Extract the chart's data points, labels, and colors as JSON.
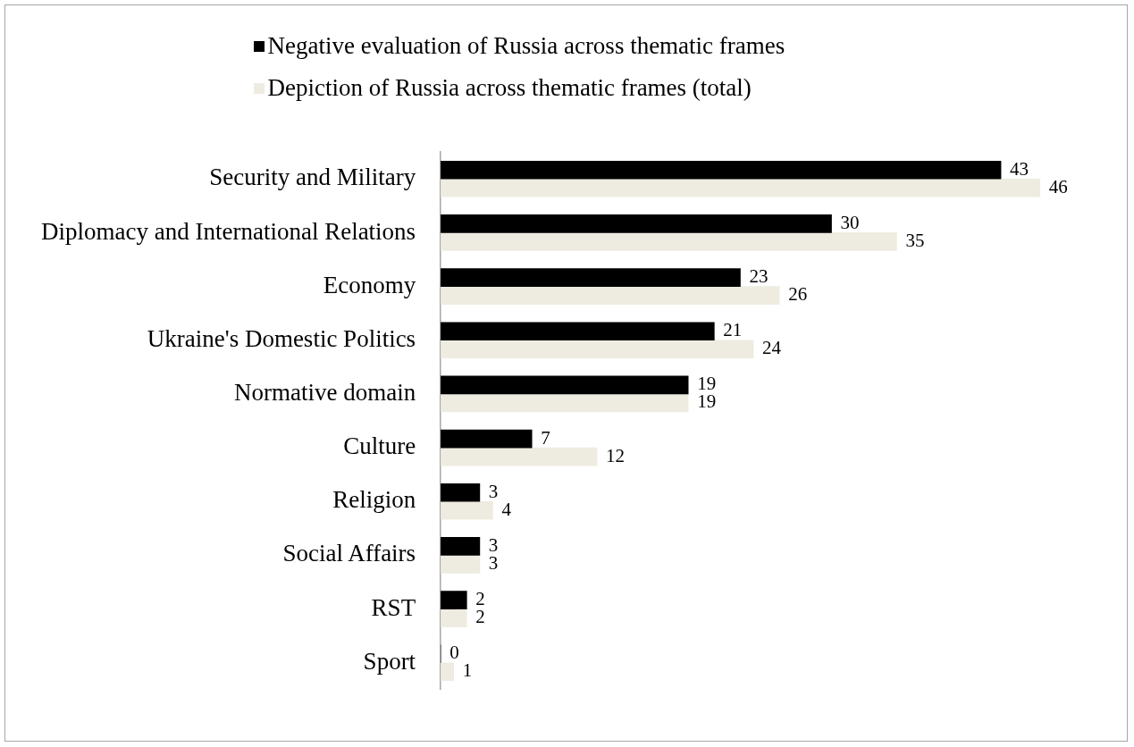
{
  "chart_data": {
    "type": "bar",
    "orientation": "horizontal",
    "categories": [
      "Security and Military",
      "Diplomacy and International Relations",
      "Economy",
      "Ukraine's Domestic Politics",
      "Normative domain",
      "Culture",
      "Religion",
      "Social Affairs",
      "RST",
      "Sport"
    ],
    "series": [
      {
        "name": "Negative evaluation of Russia across thematic frames",
        "color": "#000000",
        "values": [
          43,
          30,
          23,
          21,
          19,
          7,
          3,
          3,
          2,
          0
        ]
      },
      {
        "name": "Depiction of Russia across thematic frames (total)",
        "color": "#eeece1",
        "values": [
          46,
          35,
          26,
          24,
          19,
          12,
          4,
          3,
          2,
          1
        ]
      }
    ],
    "data_labels": true,
    "legend": "top",
    "tick_labels": "y"
  }
}
